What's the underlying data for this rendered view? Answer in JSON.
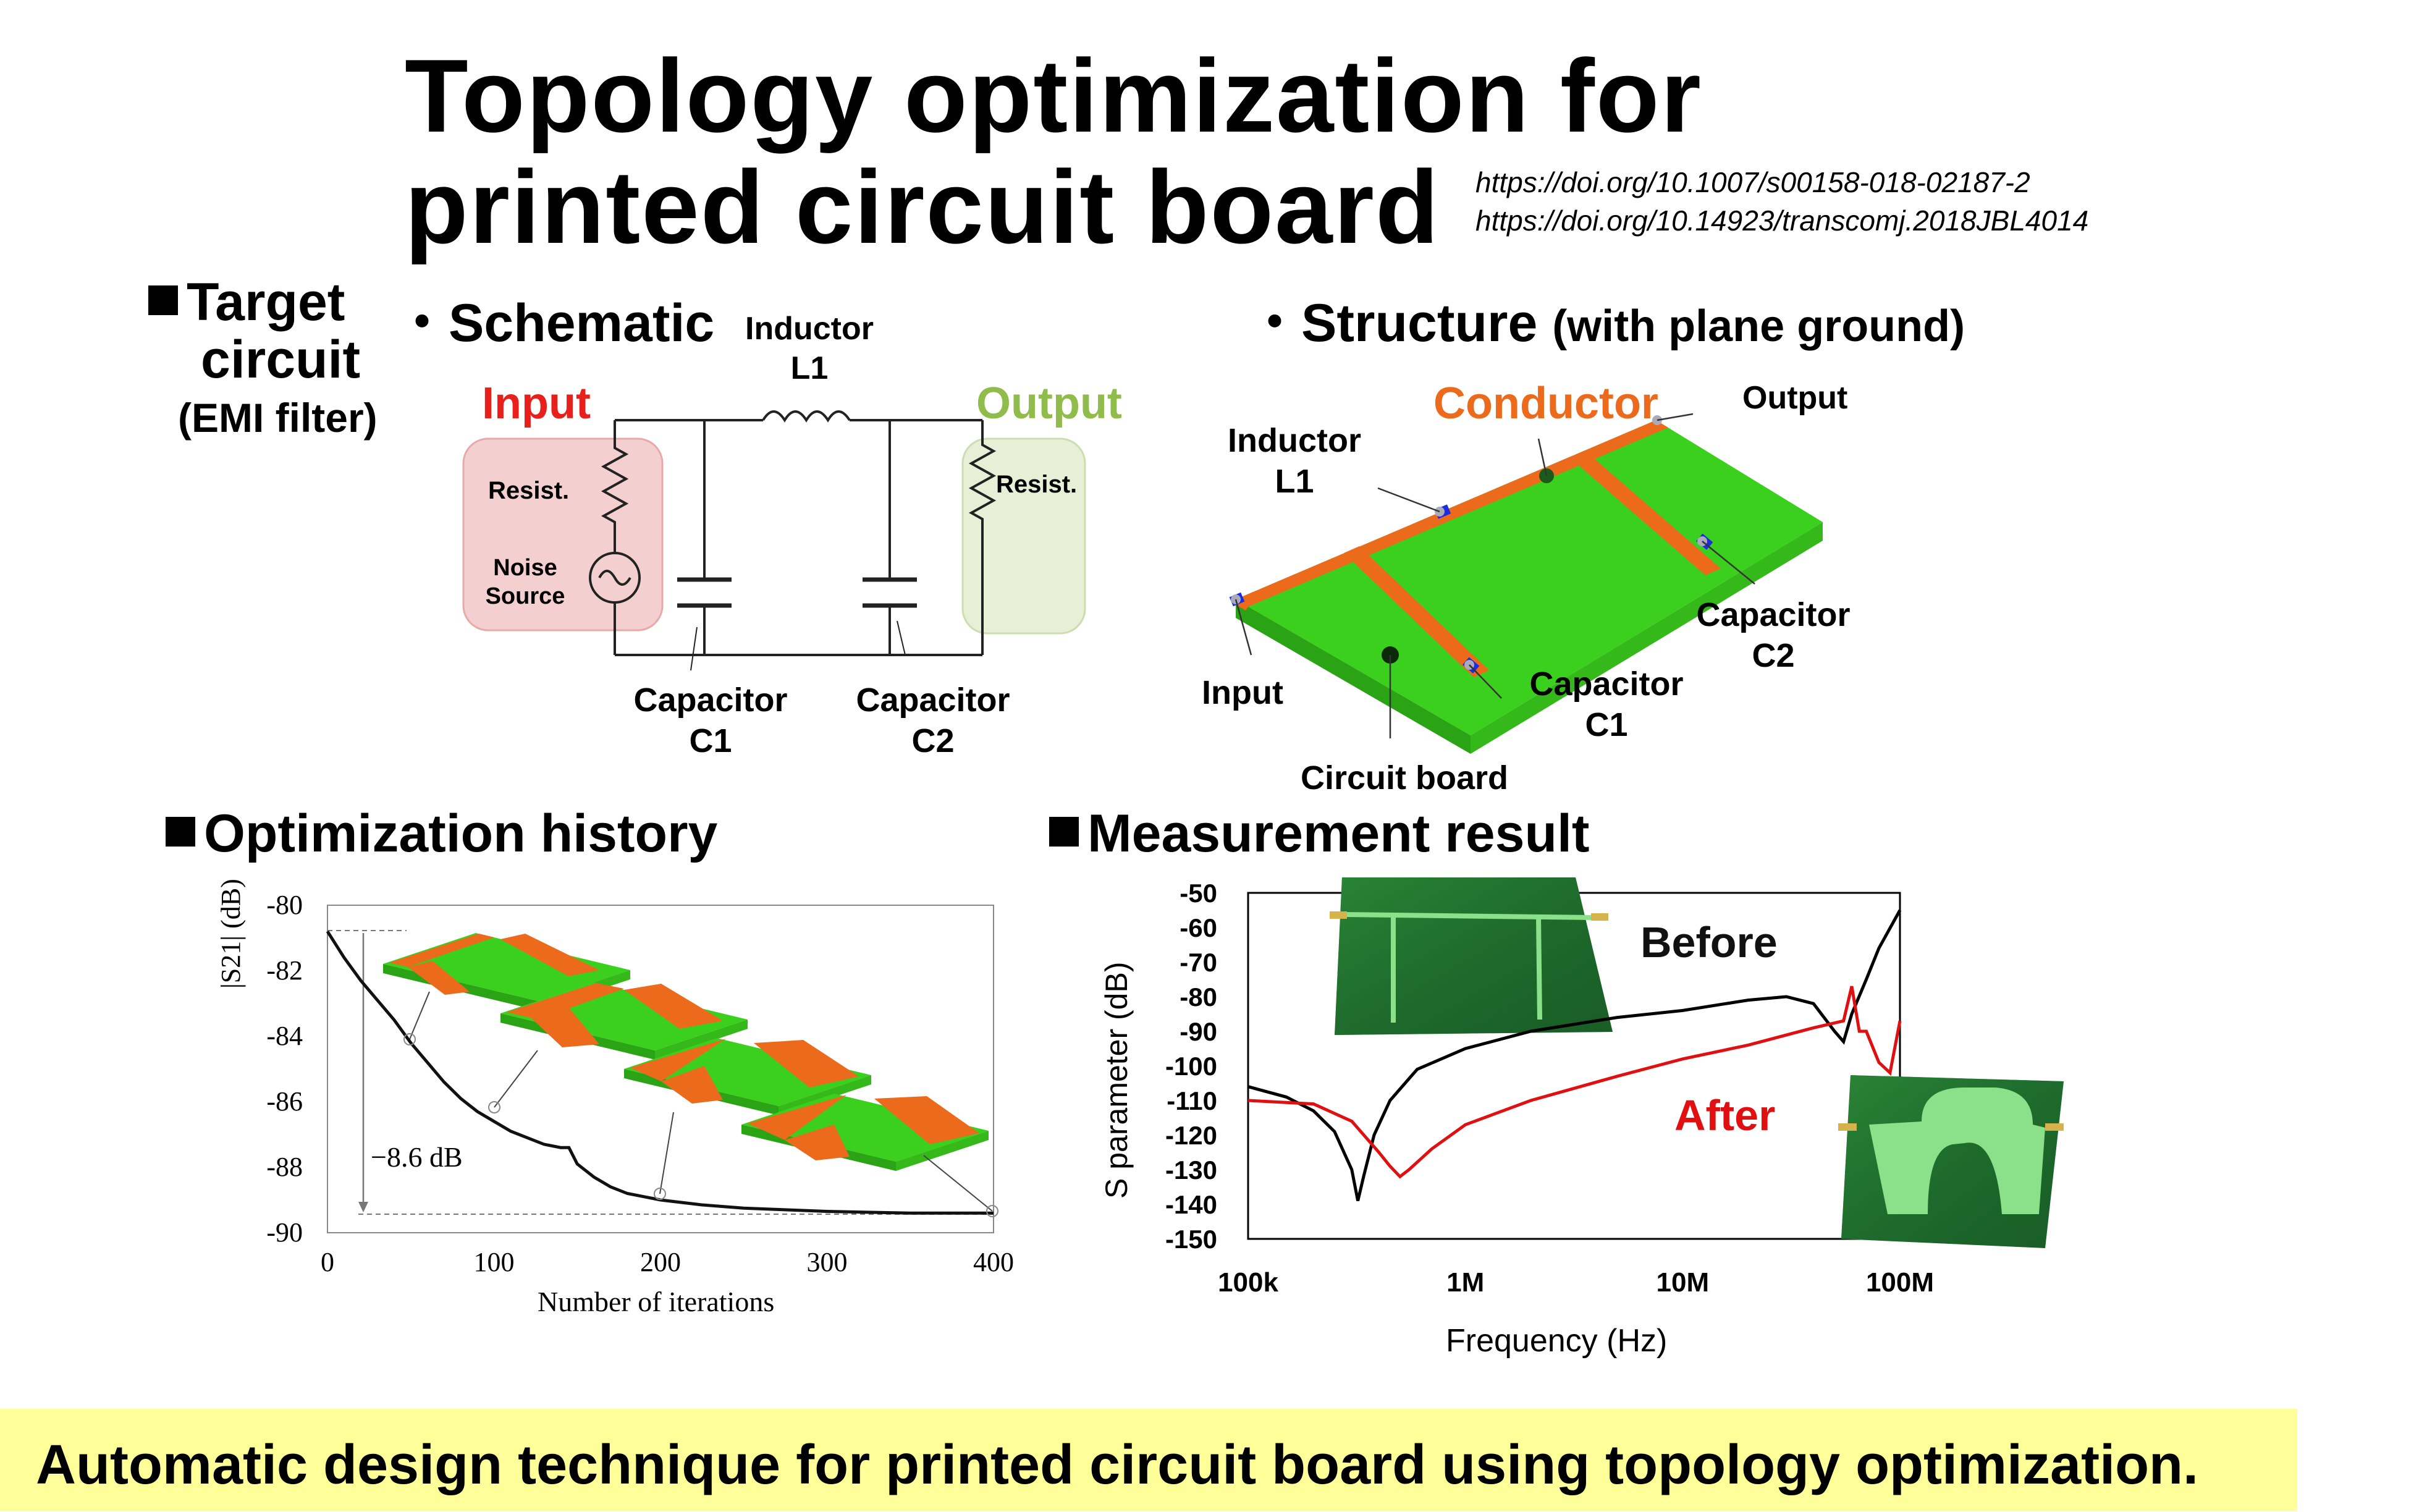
{
  "title": {
    "line1": "Topology optimization for",
    "line2": "printed circuit board"
  },
  "doi": [
    "https://doi.org/10.1007/s00158-018-02187-2",
    "https://doi.org/10.14923/transcomj.2018JBL4014"
  ],
  "target": {
    "line1": "Target",
    "line2": "circuit",
    "line3": "(EMI filter)"
  },
  "schematic": {
    "heading": "・Schematic",
    "inductor": "Inductor",
    "inductor_id": "L1",
    "input": "Input",
    "output": "Output",
    "resist_left": "Resist.",
    "resist_right": "Resist.",
    "noise": "Noise",
    "source": "Source",
    "cap1": "Capacitor",
    "cap1_id": "C1",
    "cap2": "Capacitor",
    "cap2_id": "C2"
  },
  "structure": {
    "heading": "・Structure",
    "heading_note": "(with plane ground)",
    "conductor": "Conductor",
    "output": "Output",
    "inductor": "Inductor",
    "inductor_id": "L1",
    "cap2": "Capacitor",
    "cap2_id": "C2",
    "cap1": "Capacitor",
    "cap1_id": "C1",
    "input": "Input",
    "board": "Circuit board"
  },
  "optimization": {
    "heading": "Optimization history",
    "ylabel": "|S21| (dB)",
    "xlabel": "Number of iterations",
    "annotation": "−8.6 dB",
    "chart_data": {
      "type": "line",
      "xlim": [
        0,
        400
      ],
      "ylim": [
        -90,
        -80
      ],
      "xticks": [
        "0",
        "100",
        "200",
        "300",
        "400"
      ],
      "yticks": [
        "-80",
        "-82",
        "-84",
        "-86",
        "-88",
        "-90"
      ],
      "x": [
        0,
        10,
        20,
        30,
        40,
        50,
        60,
        70,
        80,
        90,
        100,
        110,
        120,
        130,
        140,
        145,
        150,
        155,
        160,
        170,
        180,
        190,
        200,
        225,
        250,
        275,
        300,
        350,
        400
      ],
      "y": [
        -80.8,
        -81.6,
        -82.3,
        -82.9,
        -83.5,
        -84.2,
        -84.8,
        -85.4,
        -85.9,
        -86.3,
        -86.6,
        -86.9,
        -87.1,
        -87.3,
        -87.4,
        -87.4,
        -87.9,
        -88.1,
        -88.3,
        -88.6,
        -88.8,
        -88.9,
        -89.0,
        -89.15,
        -89.25,
        -89.3,
        -89.35,
        -89.4,
        -89.4
      ]
    }
  },
  "measurement": {
    "heading": "Measurement result",
    "ylabel": "S parameter (dB)",
    "xlabel": "Frequency (Hz)",
    "before": "Before",
    "after": "After",
    "chart_data": {
      "type": "line",
      "x_scale": "log",
      "xticks": [
        "100k",
        "1M",
        "10M",
        "100M"
      ],
      "yticks": [
        "-50",
        "-60",
        "-70",
        "-80",
        "-90",
        "-100",
        "-110",
        "-120",
        "-130",
        "-140",
        "-150"
      ],
      "xlim": [
        100000,
        100000000
      ],
      "ylim": [
        -150,
        -50
      ],
      "series": [
        {
          "name": "Before",
          "color": "#000000",
          "x": [
            100000,
            150000,
            200000,
            250000,
            300000,
            320000,
            340000,
            380000,
            450000,
            600000,
            1000000,
            2000000,
            5000000,
            10000000,
            20000000,
            30000000,
            40000000,
            50000000,
            55000000,
            60000000,
            70000000,
            80000000,
            100000000
          ],
          "y": [
            -106,
            -109,
            -113,
            -119,
            -130,
            -139,
            -132,
            -120,
            -110,
            -101,
            -95,
            -90,
            -86,
            -84,
            -81,
            -80,
            -82,
            -90,
            -93,
            -85,
            -75,
            -66,
            -55
          ]
        },
        {
          "name": "After",
          "color": "#e01010",
          "x": [
            100000,
            200000,
            300000,
            400000,
            450000,
            500000,
            550000,
            700000,
            1000000,
            2000000,
            5000000,
            10000000,
            20000000,
            40000000,
            55000000,
            60000000,
            65000000,
            70000000,
            80000000,
            90000000,
            100000000
          ],
          "y": [
            -110,
            -111,
            -116,
            -125,
            -129,
            -132,
            -130,
            -124,
            -117,
            -110,
            -103,
            -98,
            -94,
            -89,
            -87,
            -77,
            -90,
            -90,
            -99,
            -102,
            -87
          ]
        }
      ]
    }
  },
  "footer": "Automatic design technique for printed circuit board using topology optimization.",
  "colors": {
    "input_red": "#e8201c",
    "output_green": "#8fbc4a",
    "conductor_orange": "#ec6a1c",
    "board_green": "#3cd01e",
    "footer_bg": "#ffff99"
  }
}
